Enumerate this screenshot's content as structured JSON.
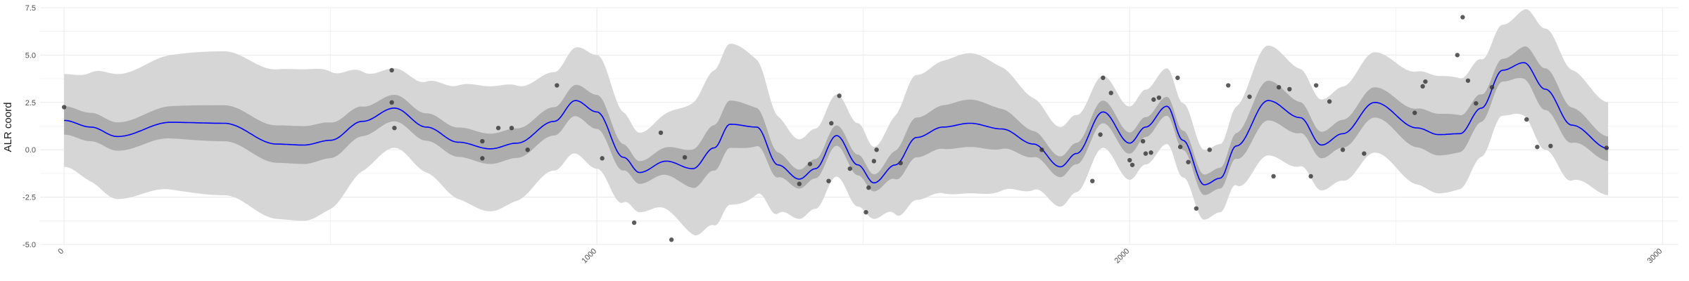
{
  "chart_data": {
    "type": "line",
    "title": "",
    "xlabel": "",
    "ylabel": "ALR coord",
    "xlim": [
      -45,
      3030
    ],
    "ylim": [
      -5.0,
      7.5
    ],
    "x_ticks": [
      0,
      1000,
      2000,
      3000
    ],
    "x_tick_labels": [
      "0",
      "1000",
      "2000",
      "3000"
    ],
    "y_ticks": [
      -5.0,
      -2.5,
      0.0,
      2.5,
      5.0,
      7.5
    ],
    "y_tick_labels": [
      "-5.0",
      "-2.5",
      "0.0",
      "2.5",
      "5.0",
      "7.5"
    ],
    "grid": true,
    "legend": "none",
    "colors": {
      "mean_line": "#0000ff",
      "inner_band": "#adadad",
      "outer_band": "#d6d6d6",
      "points": "#333333",
      "grid": "#ebebeb"
    },
    "series": [
      {
        "role": "mean",
        "x": [
          0,
          50,
          100,
          200,
          300,
          400,
          450,
          500,
          560,
          620,
          680,
          740,
          800,
          850,
          920,
          960,
          1000,
          1050,
          1080,
          1130,
          1180,
          1220,
          1250,
          1300,
          1340,
          1380,
          1410,
          1450,
          1490,
          1520,
          1560,
          1600,
          1650,
          1700,
          1760,
          1820,
          1870,
          1900,
          1950,
          2000,
          2030,
          2070,
          2100,
          2140,
          2170,
          2200,
          2260,
          2320,
          2360,
          2400,
          2460,
          2540,
          2580,
          2620,
          2660,
          2700,
          2740,
          2780,
          2830,
          2900
        ],
        "y": [
          1.55,
          1.2,
          0.7,
          1.45,
          1.4,
          0.3,
          0.25,
          0.5,
          1.5,
          2.2,
          1.2,
          0.4,
          0.05,
          0.35,
          1.5,
          2.6,
          2.0,
          -0.4,
          -1.2,
          -0.6,
          -1.0,
          0.1,
          1.35,
          1.2,
          -0.8,
          -1.55,
          -1.0,
          0.75,
          -0.8,
          -1.75,
          -0.8,
          0.65,
          1.2,
          1.4,
          1.1,
          0.3,
          -0.9,
          -0.2,
          2.0,
          0.35,
          1.2,
          2.3,
          0.5,
          -1.85,
          -1.5,
          0.2,
          2.6,
          1.7,
          0.25,
          0.85,
          2.5,
          1.15,
          0.8,
          0.85,
          2.2,
          4.2,
          4.6,
          3.2,
          1.3,
          0.05
        ]
      },
      {
        "role": "inner_band_halfwidth",
        "x": [
          0,
          100,
          300,
          450,
          620,
          800,
          920,
          1000,
          1080,
          1250,
          1380,
          1490,
          1520,
          1600,
          1700,
          1870,
          1950,
          2070,
          2170,
          2260,
          2360,
          2460,
          2580,
          2700,
          2780,
          2900
        ],
        "y": [
          0.75,
          0.75,
          0.95,
          1.0,
          0.7,
          0.8,
          0.75,
          0.9,
          0.6,
          1.25,
          0.5,
          0.55,
          0.45,
          1.05,
          1.25,
          0.55,
          0.6,
          0.5,
          0.55,
          1.05,
          0.7,
          0.8,
          1.1,
          0.6,
          1.1,
          0.65
        ]
      },
      {
        "role": "outer_band_halfwidth",
        "x": [
          0,
          100,
          300,
          450,
          620,
          800,
          920,
          1000,
          1080,
          1250,
          1380,
          1490,
          1520,
          1600,
          1700,
          1870,
          1950,
          2070,
          2170,
          2260,
          2360,
          2460,
          2580,
          2700,
          2780,
          2900
        ],
        "y": [
          2.45,
          3.3,
          3.8,
          4.0,
          2.1,
          3.3,
          2.6,
          3.0,
          2.1,
          4.25,
          2.1,
          2.2,
          1.9,
          3.3,
          3.7,
          2.1,
          1.9,
          2.0,
          1.8,
          2.9,
          2.4,
          2.65,
          3.1,
          2.4,
          3.2,
          2.45
        ]
      }
    ],
    "points": {
      "x": [
        0,
        615,
        615,
        620,
        785,
        785,
        815,
        840,
        870,
        925,
        1010,
        1070,
        1120,
        1140,
        1165,
        1380,
        1400,
        1435,
        1440,
        1455,
        1475,
        1505,
        1510,
        1520,
        1525,
        1570,
        1835,
        1930,
        1945,
        1950,
        1965,
        2000,
        2005,
        2025,
        2030,
        2040,
        2045,
        2055,
        2090,
        2095,
        2110,
        2125,
        2150,
        2185,
        2225,
        2270,
        2280,
        2300,
        2340,
        2350,
        2375,
        2400,
        2440,
        2535,
        2550,
        2555,
        2615,
        2625,
        2635,
        2650,
        2680,
        2745,
        2765,
        2790,
        2895
      ],
      "y": [
        2.25,
        4.2,
        2.5,
        1.15,
        0.45,
        -0.45,
        1.15,
        1.15,
        0.0,
        3.4,
        -0.45,
        -3.85,
        0.9,
        -4.75,
        -0.4,
        -1.8,
        -0.75,
        -1.65,
        1.4,
        2.85,
        -1.0,
        -3.3,
        -2.0,
        -0.6,
        0.0,
        -0.7,
        0.0,
        -1.65,
        0.8,
        3.8,
        3.0,
        -0.55,
        -0.8,
        0.45,
        -0.2,
        -0.15,
        2.65,
        2.75,
        3.8,
        0.15,
        -0.65,
        -3.1,
        0.0,
        3.4,
        2.8,
        -1.4,
        3.3,
        3.2,
        -1.4,
        3.4,
        2.55,
        0.0,
        -0.2,
        1.95,
        3.35,
        3.6,
        5.0,
        7.0,
        3.65,
        2.45,
        3.3,
        1.6,
        0.15,
        0.2,
        0.1
      ]
    }
  }
}
